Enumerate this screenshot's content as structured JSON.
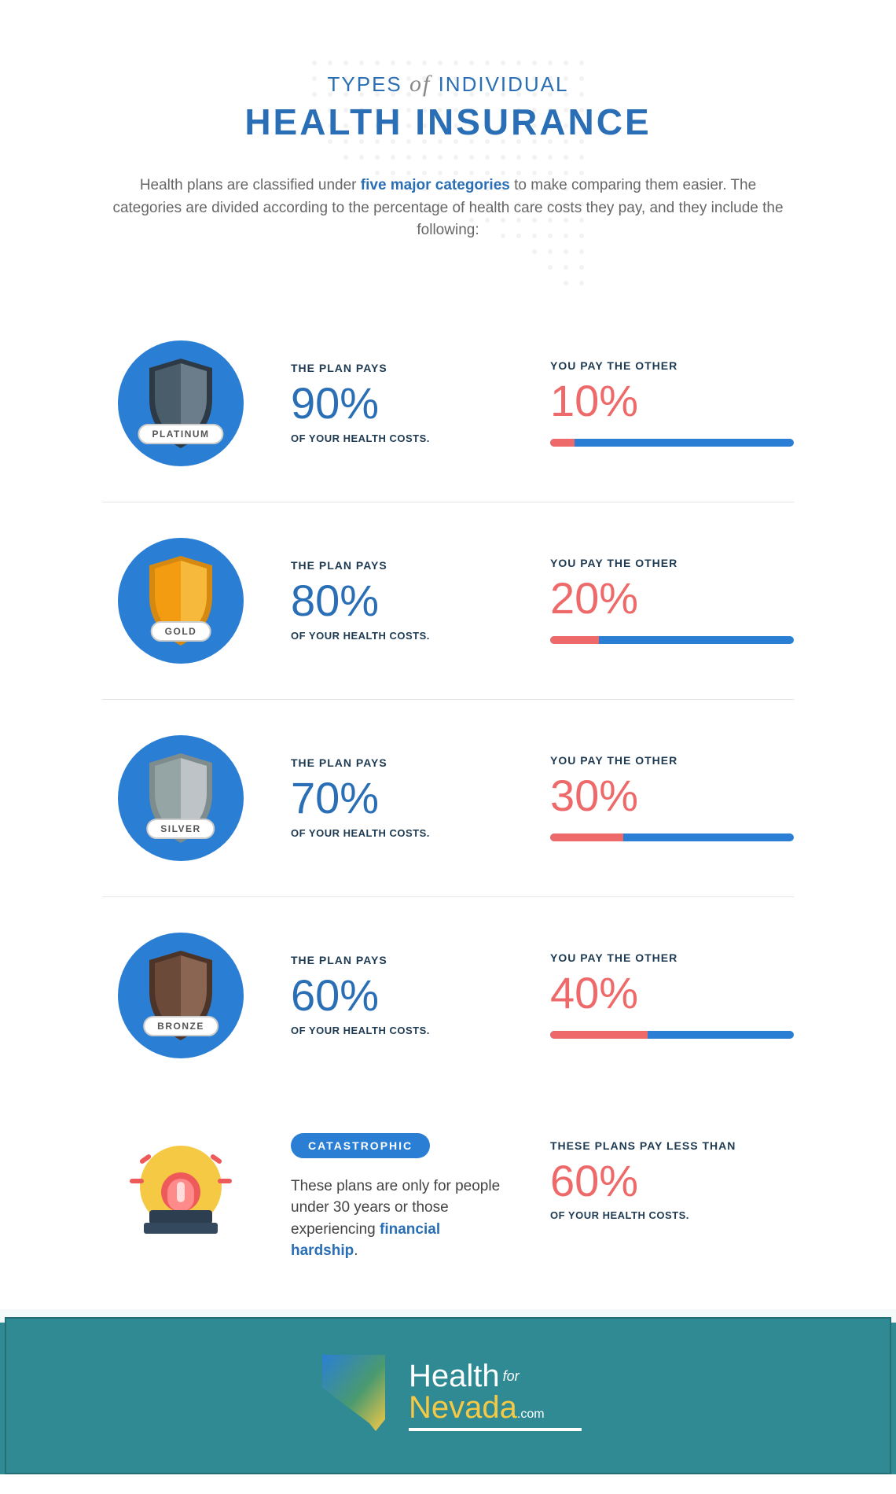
{
  "title": {
    "line1_a": "TYPES",
    "line1_of": "of",
    "line1_b": "INDIVIDUAL",
    "line2": "HEALTH INSURANCE"
  },
  "intro": {
    "pre": "Health plans are classified under ",
    "highlight": "five major categories",
    "post": " to make comparing them easier. The categories are divided according to the percentage of health care costs they pay, and they include the following:"
  },
  "labels": {
    "plan_pays": "THE PLAN PAYS",
    "you_pay": "YOU PAY THE OTHER",
    "of_costs": "OF YOUR HEALTH COSTS."
  },
  "colors": {
    "blue_primary": "#2a6fb5",
    "blue_circle": "#2a7fd4",
    "red": "#ee6a6a",
    "text_dark": "#1e3a52",
    "text_gray": "#666666",
    "footer_bg": "#2f8a94",
    "gold": "#f6c945"
  },
  "plans": [
    {
      "name": "PLATINUM",
      "plan_pct": "90%",
      "you_pct": "10%",
      "bar_pct": 10,
      "shield_fill": "#4a5d6b",
      "shield_light": "#6b7d8a",
      "shield_dark": "#2d3a45"
    },
    {
      "name": "GOLD",
      "plan_pct": "80%",
      "you_pct": "20%",
      "bar_pct": 20,
      "shield_fill": "#f39c12",
      "shield_light": "#f6b93b",
      "shield_dark": "#d68910"
    },
    {
      "name": "SILVER",
      "plan_pct": "70%",
      "you_pct": "30%",
      "bar_pct": 30,
      "shield_fill": "#95a5a6",
      "shield_light": "#bdc3c7",
      "shield_dark": "#7f8c8d"
    },
    {
      "name": "BRONZE",
      "plan_pct": "60%",
      "you_pct": "40%",
      "bar_pct": 40,
      "shield_fill": "#6b4a3a",
      "shield_light": "#8a6552",
      "shield_dark": "#4d3428"
    }
  ],
  "catastrophic": {
    "pill": "CATASTROPHIC",
    "desc_a": "These plans are only for people under 30 years or those experiencing ",
    "desc_hl": "financial hardship",
    "desc_b": ".",
    "right_label": "THESE PLANS PAY LESS THAN",
    "right_pct": "60%",
    "right_sub": "OF YOUR HEALTH COSTS."
  },
  "footer": {
    "brand_a": "Health",
    "brand_for": "for",
    "brand_b": "Nevada",
    "brand_com": ".com"
  }
}
